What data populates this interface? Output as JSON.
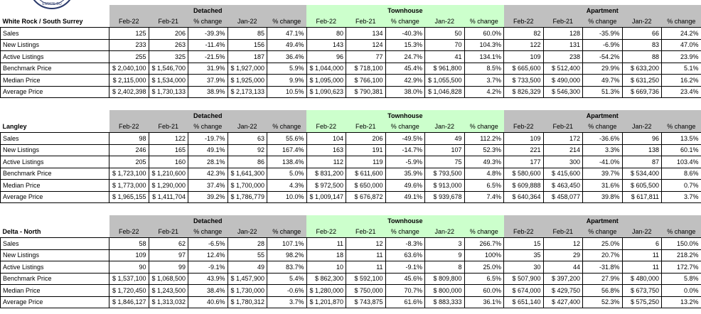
{
  "logo_text": "ESTATE BO",
  "sections": [
    {
      "title": "White Rock / South Surrey",
      "groups": [
        {
          "name": "Detached",
          "columns": [
            "Feb-22",
            "Feb-21",
            "% change",
            "Jan-22",
            "% change"
          ]
        },
        {
          "name": "Townhouse",
          "columns": [
            "Feb-22",
            "Feb-21",
            "% change",
            "Jan-22",
            "% change"
          ]
        },
        {
          "name": "Apartment",
          "columns": [
            "Feb-22",
            "Feb-21",
            "% change",
            "Jan-22",
            "% change"
          ]
        }
      ],
      "rows": [
        {
          "label": "Sales",
          "cells": [
            "125",
            "206",
            "-39.3%",
            "85",
            "47.1%",
            "80",
            "134",
            "-40.3%",
            "50",
            "60.0%",
            "82",
            "128",
            "-35.9%",
            "66",
            "24.2%"
          ]
        },
        {
          "label": "New Listings",
          "cells": [
            "233",
            "263",
            "-11.4%",
            "156",
            "49.4%",
            "143",
            "124",
            "15.3%",
            "70",
            "104.3%",
            "122",
            "131",
            "-6.9%",
            "83",
            "47.0%"
          ]
        },
        {
          "label": "Active Listings",
          "cells": [
            "255",
            "325",
            "-21.5%",
            "187",
            "36.4%",
            "96",
            "77",
            "24.7%",
            "41",
            "134.1%",
            "109",
            "238",
            "-54.2%",
            "88",
            "23.9%"
          ]
        },
        {
          "label": "Benchmark Price",
          "cells": [
            "$ 2,040,100",
            "$ 1,546,700",
            "31.9%",
            "$ 1,927,000",
            "5.9%",
            "$ 1,044,000",
            "$ 718,100",
            "45.4%",
            "$ 961,800",
            "8.5%",
            "$ 665,600",
            "$ 512,400",
            "29.9%",
            "$ 633,200",
            "5.1%"
          ]
        },
        {
          "label": "Median Price",
          "cells": [
            "$ 2,115,000",
            "$ 1,534,000",
            "37.9%",
            "$ 1,925,000",
            "9.9%",
            "$ 1,095,000",
            "$ 766,100",
            "42.9%",
            "$ 1,055,500",
            "3.7%",
            "$ 733,500",
            "$ 490,000",
            "49.7%",
            "$ 631,250",
            "16.2%"
          ]
        },
        {
          "label": "Average Price",
          "cells": [
            "$ 2,402,398",
            "$ 1,730,133",
            "38.9%",
            "$ 2,173,133",
            "10.5%",
            "$ 1,090,623",
            "$ 790,381",
            "38.0%",
            "$ 1,046,828",
            "4.2%",
            "$ 826,329",
            "$ 546,300",
            "51.3%",
            "$ 669,736",
            "23.4%"
          ]
        }
      ]
    },
    {
      "title": "Langley",
      "groups": [
        {
          "name": "Detached",
          "columns": [
            "Feb-22",
            "Feb-21",
            "% change",
            "Jan-22",
            "% change"
          ]
        },
        {
          "name": "Townhouse",
          "columns": [
            "Feb-22",
            "Feb-21",
            "% change",
            "Jan-22",
            "% change"
          ]
        },
        {
          "name": "Apartment",
          "columns": [
            "Feb-22",
            "Feb-21",
            "% change",
            "Jan-22",
            "% change"
          ]
        }
      ],
      "rows": [
        {
          "label": "Sales",
          "cells": [
            "98",
            "122",
            "-19.7%",
            "63",
            "55.6%",
            "104",
            "206",
            "-49.5%",
            "49",
            "112.2%",
            "109",
            "172",
            "-36.6%",
            "96",
            "13.5%"
          ]
        },
        {
          "label": "New Listings",
          "cells": [
            "246",
            "165",
            "49.1%",
            "92",
            "167.4%",
            "163",
            "191",
            "-14.7%",
            "107",
            "52.3%",
            "221",
            "214",
            "3.3%",
            "138",
            "60.1%"
          ]
        },
        {
          "label": "Active Listings",
          "cells": [
            "205",
            "160",
            "28.1%",
            "86",
            "138.4%",
            "112",
            "119",
            "-5.9%",
            "75",
            "49.3%",
            "177",
            "300",
            "-41.0%",
            "87",
            "103.4%"
          ]
        },
        {
          "label": "Benchmark Price",
          "cells": [
            "$ 1,723,100",
            "$ 1,210,600",
            "42.3%",
            "$ 1,641,300",
            "5.0%",
            "$ 831,200",
            "$ 611,600",
            "35.9%",
            "$ 793,500",
            "4.8%",
            "$ 580,600",
            "$ 415,600",
            "39.7%",
            "$ 534,400",
            "8.6%"
          ]
        },
        {
          "label": "Median Price",
          "cells": [
            "$ 1,773,000",
            "$ 1,290,000",
            "37.4%",
            "$ 1,700,000",
            "4.3%",
            "$ 972,500",
            "$ 650,000",
            "49.6%",
            "$ 913,000",
            "6.5%",
            "$ 609,888",
            "$ 463,450",
            "31.6%",
            "$ 605,500",
            "0.7%"
          ]
        },
        {
          "label": "Average Price",
          "cells": [
            "$ 1,965,155",
            "$ 1,411,704",
            "39.2%",
            "$ 1,786,779",
            "10.0%",
            "$ 1,009,147",
            "$ 676,872",
            "49.1%",
            "$ 939,678",
            "7.4%",
            "$ 640,364",
            "$ 458,077",
            "39.8%",
            "$ 617,811",
            "3.7%"
          ]
        }
      ]
    },
    {
      "title": "Delta - North",
      "groups": [
        {
          "name": "Detached",
          "columns": [
            "Feb-22",
            "Feb-21",
            "% change",
            "Jan-22",
            "% change"
          ]
        },
        {
          "name": "Townhouse",
          "columns": [
            "Feb-22",
            "Feb-21",
            "% change",
            "Jan-22",
            "% change"
          ]
        },
        {
          "name": "Apartment",
          "columns": [
            "Feb-22",
            "Feb-21",
            "% change",
            "Jan-22",
            "% change"
          ]
        }
      ],
      "rows": [
        {
          "label": "Sales",
          "cells": [
            "58",
            "62",
            "-6.5%",
            "28",
            "107.1%",
            "11",
            "12",
            "-8.3%",
            "3",
            "266.7%",
            "15",
            "12",
            "25.0%",
            "6",
            "150.0%"
          ]
        },
        {
          "label": "New Listings",
          "cells": [
            "109",
            "97",
            "12.4%",
            "55",
            "98.2%",
            "18",
            "11",
            "63.6%",
            "9",
            "100%",
            "35",
            "29",
            "20.7%",
            "11",
            "218.2%"
          ]
        },
        {
          "label": "Active Listings",
          "cells": [
            "90",
            "99",
            "-9.1%",
            "49",
            "83.7%",
            "10",
            "11",
            "-9.1%",
            "8",
            "25.0%",
            "30",
            "44",
            "-31.8%",
            "11",
            "172.7%"
          ]
        },
        {
          "label": "Benchmark Price",
          "cells": [
            "$ 1,537,100",
            "$ 1,068,500",
            "43.9%",
            "$ 1,457,900",
            "5.4%",
            "$ 862,300",
            "$ 592,100",
            "45.6%",
            "$ 809,800",
            "6.5%",
            "$ 507,900",
            "$ 397,200",
            "27.9%",
            "$ 480,000",
            "5.8%"
          ]
        },
        {
          "label": "Median Price",
          "cells": [
            "$ 1,720,450",
            "$ 1,243,500",
            "38.4%",
            "$ 1,730,000",
            "-0.6%",
            "$ 1,280,000",
            "$ 750,000",
            "70.7%",
            "$ 800,000",
            "60.0%",
            "$ 674,000",
            "$ 429,750",
            "56.8%",
            "$ 673,750",
            "0.0%"
          ]
        },
        {
          "label": "Average Price",
          "cells": [
            "$ 1,846,127",
            "$ 1,313,032",
            "40.6%",
            "$ 1,780,312",
            "3.7%",
            "$ 1,201,870",
            "$ 743,875",
            "61.6%",
            "$ 883,333",
            "36.1%",
            "$ 651,140",
            "$ 427,400",
            "52.3%",
            "$ 575,250",
            "13.2%"
          ]
        }
      ]
    }
  ]
}
